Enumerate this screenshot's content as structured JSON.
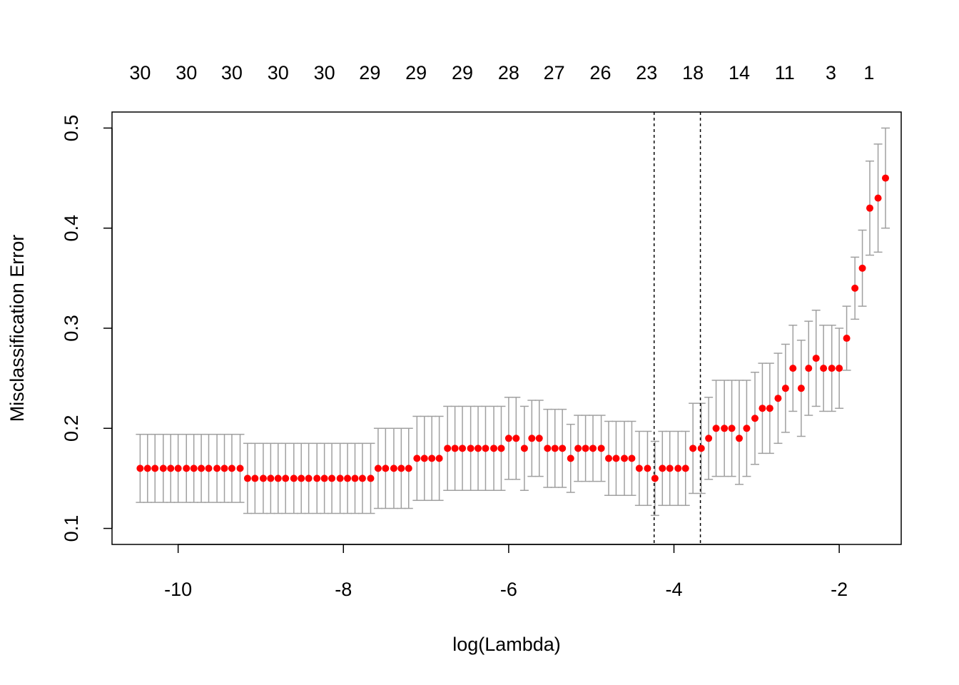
{
  "chart_data": {
    "type": "scatter",
    "xlabel": "log(Lambda)",
    "ylabel": "Misclassification Error",
    "xlim": [
      -10.8,
      -1.25
    ],
    "ylim": [
      0.1,
      0.5
    ],
    "x_ticks": [
      -10,
      -8,
      -6,
      -4,
      -2
    ],
    "x_tick_labels": [
      "-10",
      "-8",
      "-6",
      "-4",
      "-2"
    ],
    "y_ticks": [
      0.1,
      0.2,
      0.3,
      0.4,
      0.5
    ],
    "y_tick_labels": [
      "0.1",
      "0.2",
      "0.3",
      "0.4",
      "0.5"
    ],
    "top_axis": {
      "x": [
        -10.46,
        -9.9,
        -9.35,
        -8.79,
        -8.23,
        -7.68,
        -7.12,
        -6.56,
        -6.0,
        -5.45,
        -4.89,
        -4.33,
        -3.77,
        -3.21,
        -2.66,
        -2.1,
        -1.64
      ],
      "labels": [
        "30",
        "30",
        "30",
        "30",
        "30",
        "29",
        "29",
        "29",
        "28",
        "27",
        "26",
        "23",
        "18",
        "14",
        "11",
        "3",
        "1"
      ]
    },
    "vlines": [
      -4.24,
      -3.68
    ],
    "grid": false,
    "marker_color": "#ff0000",
    "errorbar_color": "#a0a0a0",
    "x": [
      -10.46,
      -10.37,
      -10.28,
      -10.18,
      -10.09,
      -10.0,
      -9.9,
      -9.81,
      -9.72,
      -9.63,
      -9.53,
      -9.44,
      -9.35,
      -9.25,
      -9.16,
      -9.07,
      -8.97,
      -8.88,
      -8.79,
      -8.7,
      -8.6,
      -8.51,
      -8.42,
      -8.32,
      -8.23,
      -8.14,
      -8.04,
      -7.95,
      -7.86,
      -7.77,
      -7.67,
      -7.58,
      -7.49,
      -7.39,
      -7.3,
      -7.21,
      -7.11,
      -7.02,
      -6.93,
      -6.84,
      -6.74,
      -6.65,
      -6.56,
      -6.46,
      -6.37,
      -6.28,
      -6.18,
      -6.09,
      -6.0,
      -5.91,
      -5.81,
      -5.72,
      -5.63,
      -5.53,
      -5.44,
      -5.35,
      -5.25,
      -5.16,
      -5.07,
      -4.98,
      -4.88,
      -4.79,
      -4.7,
      -4.6,
      -4.51,
      -4.42,
      -4.32,
      -4.23,
      -4.14,
      -4.05,
      -3.95,
      -3.86,
      -3.77,
      -3.67,
      -3.58,
      -3.49,
      -3.39,
      -3.3,
      -3.21,
      -3.12,
      -3.02,
      -2.93,
      -2.84,
      -2.74,
      -2.65,
      -2.56,
      -2.46,
      -2.37,
      -2.28,
      -2.19,
      -2.09,
      -2.0,
      -1.91,
      -1.81,
      -1.72,
      -1.63,
      -1.53,
      -1.44
    ],
    "y": [
      0.16,
      0.16,
      0.16,
      0.16,
      0.16,
      0.16,
      0.16,
      0.16,
      0.16,
      0.16,
      0.16,
      0.16,
      0.16,
      0.16,
      0.15,
      0.15,
      0.15,
      0.15,
      0.15,
      0.15,
      0.15,
      0.15,
      0.15,
      0.15,
      0.15,
      0.15,
      0.15,
      0.15,
      0.15,
      0.15,
      0.15,
      0.16,
      0.16,
      0.16,
      0.16,
      0.16,
      0.17,
      0.17,
      0.17,
      0.17,
      0.18,
      0.18,
      0.18,
      0.18,
      0.18,
      0.18,
      0.18,
      0.18,
      0.19,
      0.19,
      0.18,
      0.19,
      0.19,
      0.18,
      0.18,
      0.18,
      0.17,
      0.18,
      0.18,
      0.18,
      0.18,
      0.17,
      0.17,
      0.17,
      0.17,
      0.16,
      0.16,
      0.15,
      0.16,
      0.16,
      0.16,
      0.16,
      0.18,
      0.18,
      0.19,
      0.2,
      0.2,
      0.2,
      0.19,
      0.2,
      0.21,
      0.22,
      0.22,
      0.23,
      0.24,
      0.26,
      0.24,
      0.26,
      0.27,
      0.26,
      0.26,
      0.26,
      0.29,
      0.34,
      0.36,
      0.42,
      0.43,
      0.45
    ],
    "y_upper": [
      0.194,
      0.194,
      0.194,
      0.194,
      0.194,
      0.194,
      0.194,
      0.194,
      0.194,
      0.194,
      0.194,
      0.194,
      0.194,
      0.194,
      0.185,
      0.185,
      0.185,
      0.185,
      0.185,
      0.185,
      0.185,
      0.185,
      0.185,
      0.185,
      0.185,
      0.185,
      0.185,
      0.185,
      0.185,
      0.185,
      0.185,
      0.2,
      0.2,
      0.2,
      0.2,
      0.2,
      0.212,
      0.212,
      0.212,
      0.212,
      0.222,
      0.222,
      0.222,
      0.222,
      0.222,
      0.222,
      0.222,
      0.222,
      0.231,
      0.231,
      0.222,
      0.228,
      0.228,
      0.219,
      0.219,
      0.219,
      0.204,
      0.213,
      0.213,
      0.213,
      0.213,
      0.207,
      0.207,
      0.207,
      0.207,
      0.197,
      0.197,
      0.187,
      0.197,
      0.197,
      0.197,
      0.197,
      0.225,
      0.225,
      0.231,
      0.248,
      0.248,
      0.248,
      0.248,
      0.248,
      0.256,
      0.265,
      0.265,
      0.275,
      0.284,
      0.303,
      0.288,
      0.307,
      0.318,
      0.303,
      0.303,
      0.3,
      0.322,
      0.371,
      0.398,
      0.467,
      0.484,
      0.5
    ],
    "y_lower": [
      0.126,
      0.126,
      0.126,
      0.126,
      0.126,
      0.126,
      0.126,
      0.126,
      0.126,
      0.126,
      0.126,
      0.126,
      0.126,
      0.126,
      0.115,
      0.115,
      0.115,
      0.115,
      0.115,
      0.115,
      0.115,
      0.115,
      0.115,
      0.115,
      0.115,
      0.115,
      0.115,
      0.115,
      0.115,
      0.115,
      0.115,
      0.12,
      0.12,
      0.12,
      0.12,
      0.12,
      0.128,
      0.128,
      0.128,
      0.128,
      0.138,
      0.138,
      0.138,
      0.138,
      0.138,
      0.138,
      0.138,
      0.138,
      0.149,
      0.149,
      0.138,
      0.152,
      0.152,
      0.141,
      0.141,
      0.141,
      0.136,
      0.147,
      0.147,
      0.147,
      0.147,
      0.133,
      0.133,
      0.133,
      0.133,
      0.123,
      0.123,
      0.113,
      0.123,
      0.123,
      0.123,
      0.123,
      0.135,
      0.135,
      0.149,
      0.152,
      0.152,
      0.152,
      0.144,
      0.152,
      0.164,
      0.175,
      0.175,
      0.185,
      0.196,
      0.217,
      0.192,
      0.213,
      0.222,
      0.217,
      0.217,
      0.22,
      0.258,
      0.309,
      0.322,
      0.373,
      0.376,
      0.4
    ]
  }
}
